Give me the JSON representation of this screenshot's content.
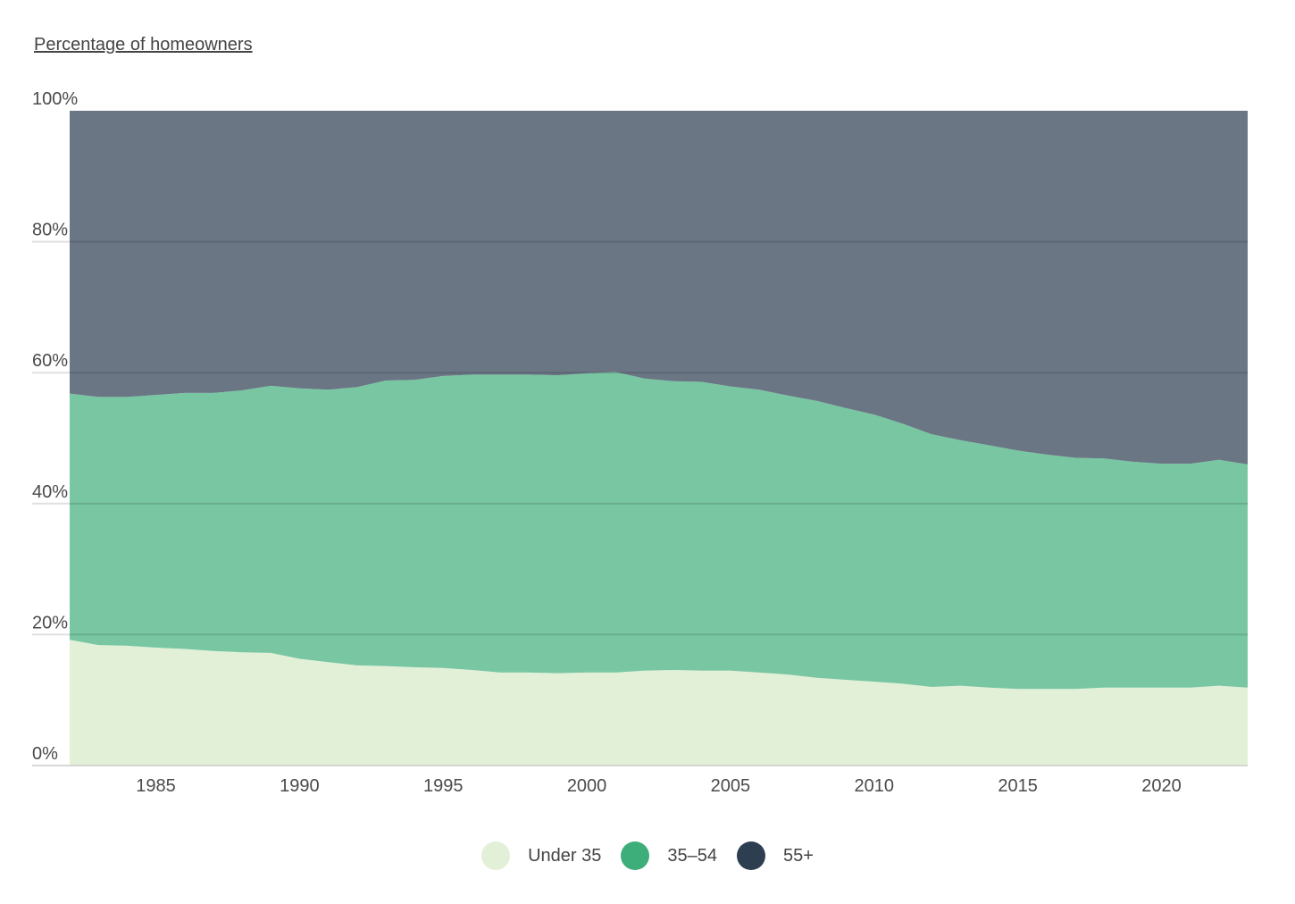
{
  "chart_data": {
    "type": "area",
    "stacked": true,
    "ylabel": "Percentage of homeowners",
    "xlabel": "",
    "ylim": [
      0,
      100
    ],
    "xlim": [
      1982,
      2023
    ],
    "y_ticks": [
      "0%",
      "20%",
      "40%",
      "60%",
      "80%",
      "100%"
    ],
    "y_tick_values": [
      0,
      20,
      40,
      60,
      80,
      100
    ],
    "x_ticks": [
      1985,
      1990,
      1995,
      2000,
      2005,
      2010,
      2015,
      2020
    ],
    "grid": true,
    "legend_position": "bottom-center",
    "x": [
      1982,
      1983,
      1984,
      1985,
      1986,
      1987,
      1988,
      1989,
      1990,
      1991,
      1992,
      1993,
      1994,
      1995,
      1996,
      1997,
      1998,
      1999,
      2000,
      2001,
      2002,
      2003,
      2004,
      2005,
      2006,
      2007,
      2008,
      2009,
      2010,
      2011,
      2012,
      2013,
      2014,
      2015,
      2016,
      2017,
      2018,
      2019,
      2020,
      2021,
      2022,
      2023
    ],
    "series": [
      {
        "name": "Under 35",
        "color": "#e3f0d8",
        "values": [
          19.2,
          18.4,
          18.3,
          18.0,
          17.8,
          17.5,
          17.3,
          17.2,
          16.3,
          15.8,
          15.3,
          15.2,
          15.0,
          14.9,
          14.6,
          14.2,
          14.2,
          14.1,
          14.2,
          14.2,
          14.5,
          14.6,
          14.5,
          14.5,
          14.2,
          13.9,
          13.4,
          13.1,
          12.8,
          12.5,
          12.0,
          12.2,
          11.9,
          11.7,
          11.7,
          11.7,
          11.9,
          11.9,
          11.9,
          11.9,
          12.2,
          11.9
        ]
      },
      {
        "name": "35–54",
        "color": "#3dae7a",
        "values": [
          37.6,
          37.9,
          38.0,
          38.6,
          39.1,
          39.4,
          40.0,
          40.8,
          41.3,
          41.6,
          42.5,
          43.6,
          43.9,
          44.6,
          45.1,
          45.5,
          45.5,
          45.5,
          45.7,
          45.9,
          44.6,
          44.1,
          44.1,
          43.4,
          43.2,
          42.6,
          42.3,
          41.5,
          40.8,
          39.7,
          38.6,
          37.5,
          37.0,
          36.4,
          35.8,
          35.3,
          35.0,
          34.5,
          34.2,
          34.2,
          34.5,
          34.1
        ]
      },
      {
        "name": "55+",
        "color": "#2d3e50",
        "values": [
          43.2,
          43.7,
          43.7,
          43.4,
          43.1,
          43.1,
          42.7,
          42.0,
          42.4,
          42.6,
          42.2,
          41.2,
          41.1,
          40.5,
          40.3,
          40.3,
          40.3,
          40.4,
          40.1,
          39.9,
          40.9,
          41.3,
          41.4,
          42.1,
          42.6,
          43.5,
          44.3,
          45.4,
          46.4,
          47.8,
          49.4,
          50.3,
          51.1,
          51.9,
          52.5,
          53.0,
          53.1,
          53.6,
          53.9,
          53.9,
          53.3,
          54.0
        ]
      }
    ]
  }
}
